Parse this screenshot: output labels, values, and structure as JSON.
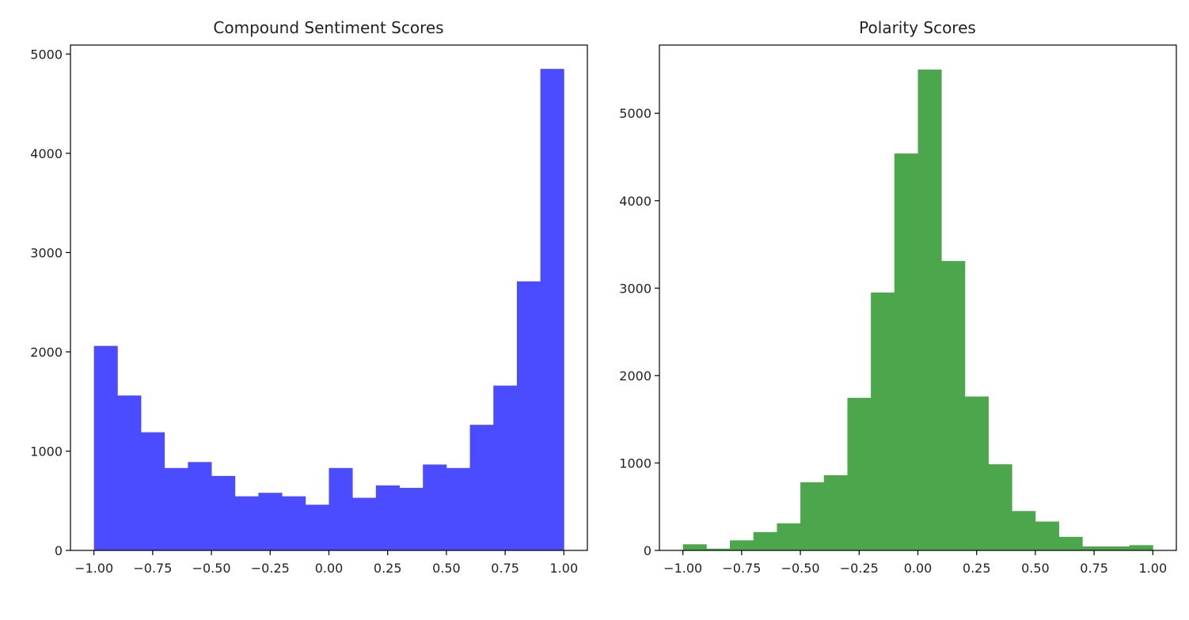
{
  "chart_data": [
    {
      "type": "bar",
      "title": "Compound Sentiment Scores",
      "xlabel": "",
      "ylabel": "",
      "bins": 20,
      "bin_range": [
        -1.0,
        1.0
      ],
      "values": [
        2060,
        1560,
        1190,
        830,
        890,
        750,
        545,
        580,
        545,
        460,
        830,
        530,
        655,
        630,
        865,
        830,
        1265,
        1660,
        2710,
        4850
      ],
      "xlim": [
        -1.1,
        1.1
      ],
      "ylim": [
        0,
        5090
      ],
      "xticks": [
        -1.0,
        -0.75,
        -0.5,
        -0.25,
        0.0,
        0.25,
        0.5,
        0.75,
        1.0
      ],
      "xtick_labels": [
        "−1.00",
        "−0.75",
        "−0.50",
        "−0.25",
        "0.00",
        "0.25",
        "0.50",
        "0.75",
        "1.00"
      ],
      "yticks": [
        0,
        1000,
        2000,
        3000,
        4000,
        5000
      ],
      "ytick_labels": [
        "0",
        "1000",
        "2000",
        "3000",
        "4000",
        "5000"
      ],
      "color": "#4b4bff",
      "grid": false
    },
    {
      "type": "bar",
      "title": "Polarity Scores",
      "xlabel": "",
      "ylabel": "",
      "bins": 20,
      "bin_range": [
        -1.0,
        1.0
      ],
      "values": [
        70,
        20,
        115,
        210,
        310,
        780,
        860,
        1745,
        2950,
        4540,
        5500,
        3310,
        1760,
        985,
        450,
        330,
        155,
        45,
        45,
        60
      ],
      "xlim": [
        -1.1,
        1.1
      ],
      "ylim": [
        0,
        5780
      ],
      "xticks": [
        -1.0,
        -0.75,
        -0.5,
        -0.25,
        0.0,
        0.25,
        0.5,
        0.75,
        1.0
      ],
      "xtick_labels": [
        "−1.00",
        "−0.75",
        "−0.50",
        "−0.25",
        "0.00",
        "0.25",
        "0.50",
        "0.75",
        "1.00"
      ],
      "yticks": [
        0,
        1000,
        2000,
        3000,
        4000,
        5000
      ],
      "ytick_labels": [
        "0",
        "1000",
        "2000",
        "3000",
        "4000",
        "5000"
      ],
      "color": "#4ca64c",
      "grid": false
    }
  ]
}
